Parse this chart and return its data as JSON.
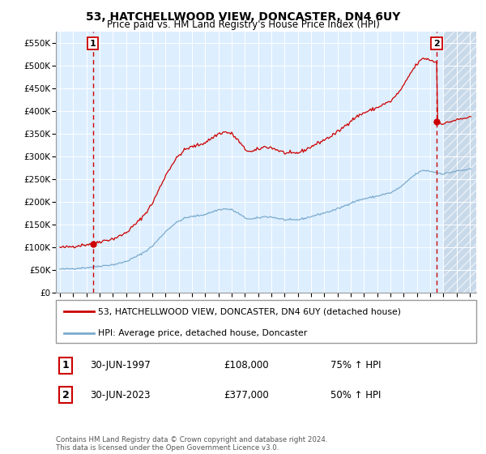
{
  "title": "53, HATCHELLWOOD VIEW, DONCASTER, DN4 6UY",
  "subtitle": "Price paid vs. HM Land Registry's House Price Index (HPI)",
  "legend_line1": "53, HATCHELLWOOD VIEW, DONCASTER, DN4 6UY (detached house)",
  "legend_line2": "HPI: Average price, detached house, Doncaster",
  "annotation1_num": "1",
  "annotation1_date": "30-JUN-1997",
  "annotation1_price": "£108,000",
  "annotation1_hpi": "75% ↑ HPI",
  "annotation2_num": "2",
  "annotation2_date": "30-JUN-2023",
  "annotation2_price": "£377,000",
  "annotation2_hpi": "50% ↑ HPI",
  "footer": "Contains HM Land Registry data © Crown copyright and database right 2024.\nThis data is licensed under the Open Government Licence v3.0.",
  "sale1_year": 1997.5,
  "sale1_price": 108000,
  "sale2_year": 2023.5,
  "sale2_price": 377000,
  "red_color": "#cc0000",
  "blue_color": "#7aabcc",
  "bg_color": "#ddeeff",
  "grid_color": "#ffffff",
  "hatch_color": "#bbccdd",
  "ylim_min": 0,
  "ylim_max": 575000,
  "xlim_left": 1994.7,
  "xlim_right": 2026.5,
  "hatch_start": 2024.0
}
